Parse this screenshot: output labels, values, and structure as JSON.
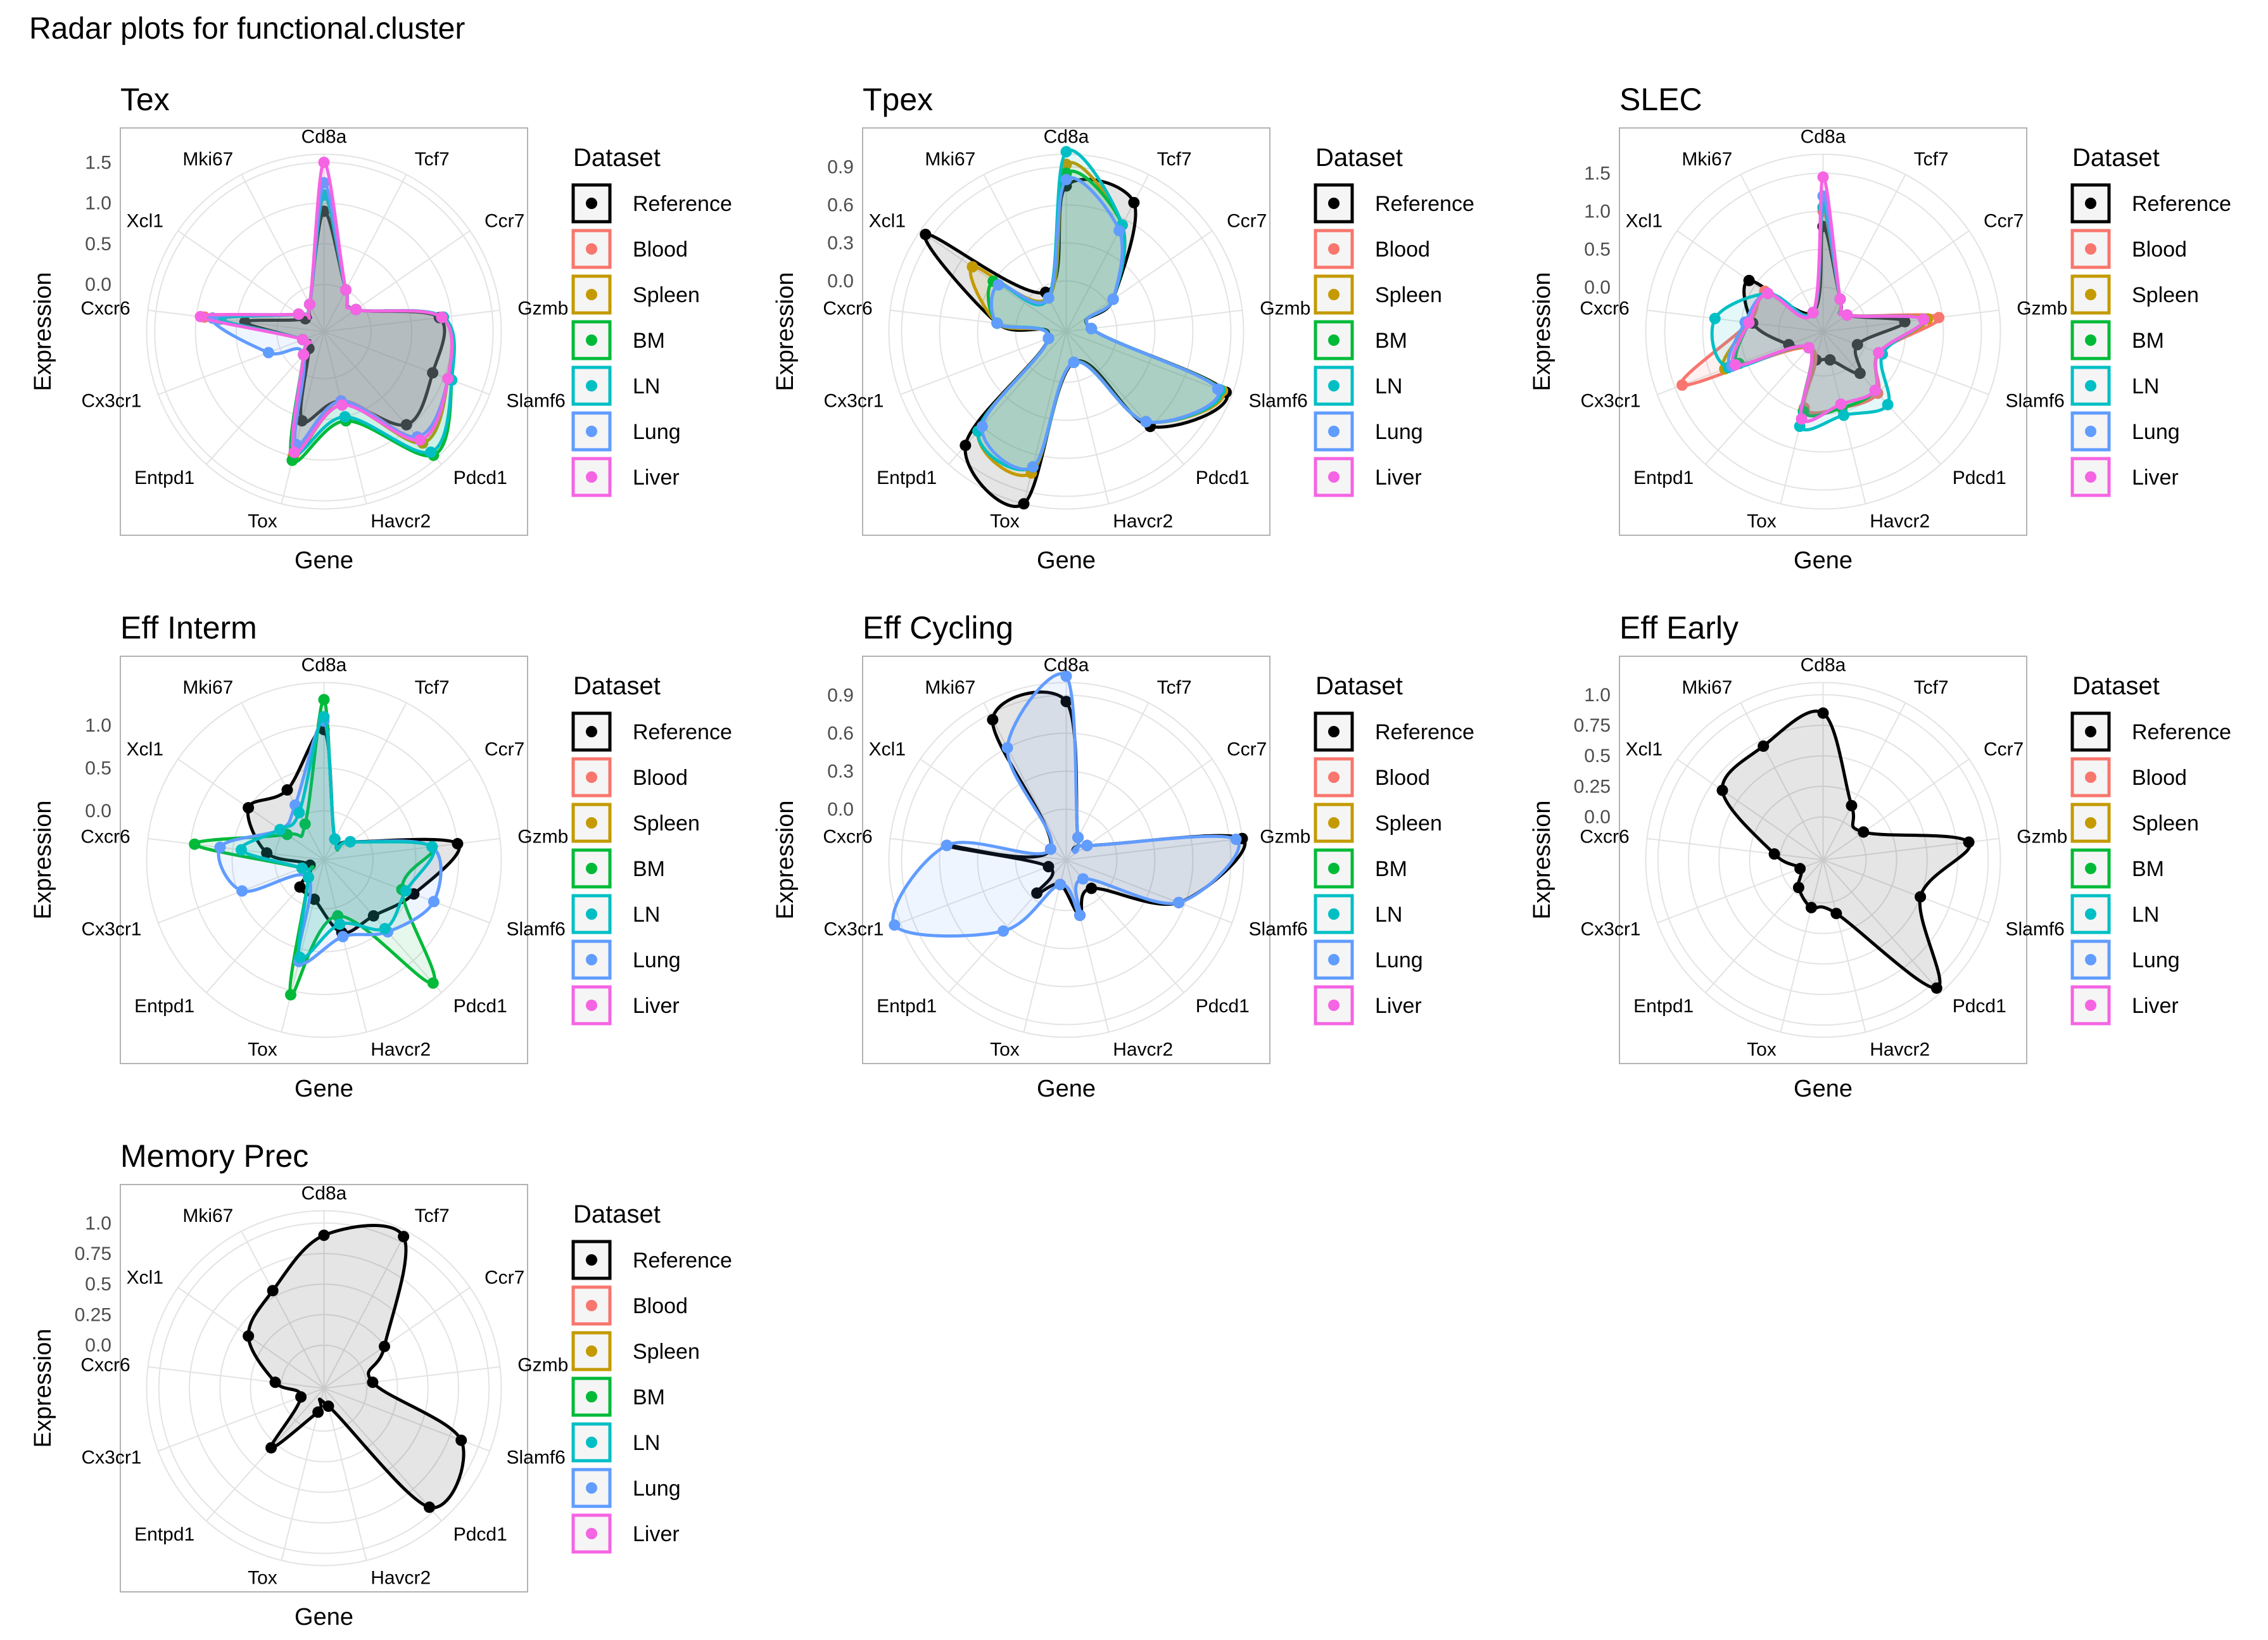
{
  "page_title": "Radar plots for functional.cluster",
  "colors": {
    "Reference": "#000000",
    "Blood": "#F8766D",
    "Spleen": "#C49A00",
    "BM": "#00BA38",
    "LN": "#00BFC4",
    "Lung": "#619CFF",
    "Liver": "#F564E3"
  },
  "chart_data": [
    {
      "type": "radar",
      "title": "Tex",
      "xlabel": "Gene",
      "ylabel": "Expression",
      "legend_title": "Dataset",
      "legend_items": [
        "Reference",
        "Blood",
        "Spleen",
        "BM",
        "LN",
        "Lung",
        "Liver"
      ],
      "categories": [
        "Cd8a",
        "Tcf7",
        "Ccr7",
        "Gzmb",
        "Slamf6",
        "Pdcd1",
        "Havcr2",
        "Tox",
        "Entpd1",
        "Cx3cr1",
        "Cxcr6",
        "Xcl1",
        "Mki67"
      ],
      "ylim": [
        -0.5,
        1.6
      ],
      "yticks": [
        0.0,
        0.5,
        1.0,
        1.5
      ],
      "series": [
        {
          "name": "Reference",
          "values": [
            0.9,
            0.0,
            -0.1,
            0.85,
            0.85,
            0.95,
            0.3,
            0.55,
            -0.3,
            -0.3,
            0.4,
            -0.3,
            -0.2
          ]
        },
        {
          "name": "Blood",
          "values": [
            1.1,
            0.0,
            -0.1,
            0.88,
            1.05,
            1.15,
            0.3,
            0.95,
            -0.2,
            -0.3,
            0.9,
            -0.2,
            -0.2
          ]
        },
        {
          "name": "Spleen",
          "values": [
            1.1,
            0.0,
            -0.1,
            0.88,
            1.05,
            1.25,
            0.35,
            1.0,
            -0.2,
            -0.3,
            0.8,
            -0.2,
            -0.2
          ]
        },
        {
          "name": "BM",
          "values": [
            1.1,
            0.0,
            -0.1,
            0.88,
            1.1,
            1.45,
            0.55,
            1.05,
            -0.2,
            -0.3,
            0.7,
            -0.2,
            -0.2
          ]
        },
        {
          "name": "LN",
          "values": [
            1.1,
            0.0,
            -0.1,
            0.9,
            1.1,
            1.4,
            0.5,
            0.95,
            -0.2,
            -0.3,
            0.7,
            -0.2,
            -0.2
          ]
        },
        {
          "name": "Lung",
          "values": [
            1.25,
            0.0,
            -0.1,
            0.88,
            1.05,
            1.15,
            0.3,
            0.85,
            -0.2,
            0.15,
            0.8,
            -0.2,
            -0.2
          ]
        },
        {
          "name": "Liver",
          "values": [
            1.5,
            0.0,
            -0.1,
            0.88,
            1.05,
            1.2,
            0.35,
            0.95,
            -0.2,
            -0.3,
            0.95,
            -0.2,
            -0.2
          ]
        }
      ]
    },
    {
      "type": "radar",
      "title": "Tpex",
      "xlabel": "Gene",
      "ylabel": "Expression",
      "legend_title": "Dataset",
      "legend_items": [
        "Reference",
        "Blood",
        "Spleen",
        "BM",
        "LN",
        "Lung",
        "Liver"
      ],
      "categories": [
        "Cd8a",
        "Tcf7",
        "Ccr7",
        "Gzmb",
        "Slamf6",
        "Pdcd1",
        "Havcr2",
        "Tox",
        "Entpd1",
        "Cx3cr1",
        "Cxcr6",
        "Xcl1",
        "Mki67"
      ],
      "ylim": [
        -0.35,
        1.0
      ],
      "yticks": [
        0.0,
        0.3,
        0.6,
        0.9
      ],
      "series": [
        {
          "name": "Reference",
          "values": [
            0.75,
            0.75,
            0.05,
            -0.2,
            0.95,
            0.6,
            -0.15,
            1.0,
            0.8,
            -0.25,
            0.15,
            0.95,
            -0.05
          ]
        },
        {
          "name": "Spleen",
          "values": [
            0.92,
            0.55,
            0.05,
            -0.2,
            0.92,
            0.55,
            -0.15,
            0.75,
            0.65,
            -0.25,
            0.15,
            0.5,
            -0.1
          ]
        },
        {
          "name": "BM",
          "values": [
            0.85,
            0.55,
            0.05,
            -0.2,
            0.9,
            0.55,
            -0.15,
            0.7,
            0.65,
            -0.25,
            0.15,
            0.3,
            -0.1
          ]
        },
        {
          "name": "LN",
          "values": [
            1.02,
            0.55,
            0.05,
            -0.2,
            0.9,
            0.55,
            -0.15,
            0.7,
            0.65,
            -0.25,
            0.15,
            0.25,
            -0.1
          ]
        },
        {
          "name": "Lung",
          "values": [
            0.8,
            0.5,
            0.05,
            -0.2,
            0.88,
            0.55,
            -0.15,
            0.7,
            0.6,
            -0.25,
            0.15,
            0.25,
            -0.1
          ]
        }
      ]
    },
    {
      "type": "radar",
      "title": "SLEC",
      "xlabel": "Gene",
      "ylabel": "Expression",
      "legend_title": "Dataset",
      "legend_items": [
        "Reference",
        "Blood",
        "Spleen",
        "BM",
        "LN",
        "Lung",
        "Liver"
      ],
      "categories": [
        "Cd8a",
        "Tcf7",
        "Ccr7",
        "Gzmb",
        "Slamf6",
        "Pdcd1",
        "Havcr2",
        "Tox",
        "Entpd1",
        "Cx3cr1",
        "Cxcr6",
        "Xcl1",
        "Mki67"
      ],
      "ylim": [
        -0.5,
        1.75
      ],
      "yticks": [
        0.0,
        0.5,
        1.0,
        1.5
      ],
      "series": [
        {
          "name": "Reference",
          "values": [
            0.8,
            -0.1,
            -0.2,
            0.5,
            -0.1,
            0.15,
            -0.2,
            -0.2,
            -0.3,
            -0.1,
            0.35,
            0.6,
            -0.3
          ]
        },
        {
          "name": "Blood",
          "values": [
            1.0,
            -0.1,
            -0.2,
            0.95,
            0.2,
            0.5,
            0.45,
            0.45,
            -0.3,
            1.4,
            0.4,
            0.35,
            -0.3
          ]
        },
        {
          "name": "Spleen",
          "values": [
            1.05,
            -0.1,
            -0.2,
            0.8,
            0.2,
            0.45,
            0.45,
            0.5,
            -0.3,
            0.8,
            0.4,
            0.3,
            -0.3
          ]
        },
        {
          "name": "BM",
          "values": [
            1.05,
            -0.1,
            -0.2,
            0.75,
            0.2,
            0.45,
            0.45,
            0.5,
            -0.3,
            0.6,
            0.4,
            0.3,
            -0.3
          ]
        },
        {
          "name": "LN",
          "values": [
            1.05,
            -0.1,
            -0.2,
            0.75,
            0.25,
            0.7,
            0.55,
            0.7,
            -0.3,
            0.75,
            0.85,
            0.3,
            -0.3
          ]
        },
        {
          "name": "Lung",
          "values": [
            1.2,
            -0.1,
            -0.2,
            0.75,
            0.2,
            0.45,
            0.4,
            0.6,
            -0.3,
            0.7,
            0.45,
            0.3,
            -0.3
          ]
        },
        {
          "name": "Liver",
          "values": [
            1.45,
            -0.1,
            -0.2,
            0.75,
            0.2,
            0.45,
            0.4,
            0.6,
            -0.3,
            0.65,
            0.4,
            0.3,
            -0.3
          ]
        }
      ]
    },
    {
      "type": "radar",
      "title": "Eff Interm",
      "xlabel": "Gene",
      "ylabel": "Expression",
      "legend_title": "Dataset",
      "legend_items": [
        "Reference",
        "Blood",
        "Spleen",
        "BM",
        "LN",
        "Lung",
        "Liver"
      ],
      "categories": [
        "Cd8a",
        "Tcf7",
        "Ccr7",
        "Gzmb",
        "Slamf6",
        "Pdcd1",
        "Havcr2",
        "Tox",
        "Entpd1",
        "Cx3cr1",
        "Cxcr6",
        "Xcl1",
        "Mki67"
      ],
      "ylim": [
        -0.5,
        1.5
      ],
      "yticks": [
        0.0,
        0.5,
        1.0
      ],
      "series": [
        {
          "name": "Reference",
          "values": [
            0.95,
            -0.3,
            -0.2,
            1.0,
            0.55,
            0.3,
            0.3,
            -0.1,
            -0.15,
            -0.4,
            0.1,
            0.5,
            0.35
          ]
        },
        {
          "name": "BM",
          "values": [
            1.3,
            -0.3,
            -0.2,
            0.7,
            0.4,
            1.35,
            0.1,
            1.05,
            -0.3,
            -0.3,
            0.95,
            -0.05,
            -0.1
          ]
        },
        {
          "name": "Lung",
          "values": [
            1.05,
            -0.3,
            -0.2,
            0.7,
            0.8,
            0.55,
            0.35,
            0.65,
            -0.3,
            0.45,
            0.65,
            0.05,
            0.15
          ]
        },
        {
          "name": "LN",
          "values": [
            1.1,
            -0.3,
            -0.2,
            0.7,
            0.45,
            0.5,
            0.2,
            0.6,
            -0.3,
            -0.3,
            0.4,
            0.05,
            0.05
          ]
        }
      ]
    },
    {
      "type": "radar",
      "title": "Eff Cycling",
      "xlabel": "Gene",
      "ylabel": "Expression",
      "legend_title": "Dataset",
      "legend_items": [
        "Reference",
        "Blood",
        "Spleen",
        "BM",
        "LN",
        "Lung",
        "Liver"
      ],
      "categories": [
        "Cd8a",
        "Tcf7",
        "Ccr7",
        "Gzmb",
        "Slamf6",
        "Pdcd1",
        "Havcr2",
        "Tox",
        "Entpd1",
        "Cx3cr1",
        "Cxcr6",
        "Xcl1",
        "Mki67"
      ],
      "ylim": [
        -0.35,
        1.0
      ],
      "yticks": [
        0.0,
        0.3,
        0.6,
        0.9
      ],
      "series": [
        {
          "name": "Reference",
          "values": [
            0.85,
            -0.2,
            -0.2,
            1.0,
            0.55,
            -0.1,
            0.05,
            -0.2,
            -0.05,
            -0.25,
            0.55,
            -0.25,
            0.85
          ]
        },
        {
          "name": "Lung",
          "values": [
            1.05,
            -0.2,
            -0.2,
            0.95,
            0.55,
            -0.2,
            0.05,
            -0.2,
            0.35,
            1.05,
            0.55,
            -0.25,
            0.6
          ]
        }
      ]
    },
    {
      "type": "radar",
      "title": "Eff Early",
      "xlabel": "Gene",
      "ylabel": "Expression",
      "legend_title": "Dataset",
      "legend_items": [
        "Reference",
        "Blood",
        "Spleen",
        "BM",
        "LN",
        "Lung",
        "Liver"
      ],
      "categories": [
        "Cd8a",
        "Tcf7",
        "Ccr7",
        "Gzmb",
        "Slamf6",
        "Pdcd1",
        "Havcr2",
        "Tox",
        "Entpd1",
        "Cx3cr1",
        "Cxcr6",
        "Xcl1",
        "Mki67"
      ],
      "ylim": [
        -0.3,
        1.1
      ],
      "yticks": [
        0.0,
        0.25,
        0.5,
        0.75,
        1.0
      ],
      "series": [
        {
          "name": "Reference",
          "values": [
            0.85,
            0.15,
            0.05,
            0.85,
            0.5,
            1.05,
            0.1,
            0.05,
            -0.05,
            -0.15,
            0.05,
            0.65,
            0.7
          ]
        }
      ]
    },
    {
      "type": "radar",
      "title": "Memory Prec",
      "xlabel": "Gene",
      "ylabel": "Expression",
      "legend_title": "Dataset",
      "legend_items": [
        "Reference",
        "Blood",
        "Spleen",
        "BM",
        "LN",
        "Lung",
        "Liver"
      ],
      "categories": [
        "Cd8a",
        "Tcf7",
        "Ccr7",
        "Gzmb",
        "Slamf6",
        "Pdcd1",
        "Havcr2",
        "Tox",
        "Entpd1",
        "Cx3cr1",
        "Cxcr6",
        "Xcl1",
        "Mki67"
      ],
      "ylim": [
        -0.3,
        1.1
      ],
      "yticks": [
        0.0,
        0.25,
        0.5,
        0.75,
        1.0
      ],
      "series": [
        {
          "name": "Reference",
          "values": [
            0.9,
            1.05,
            0.25,
            0.05,
            0.85,
            0.95,
            -0.2,
            -0.15,
            0.3,
            -0.15,
            0.05,
            0.4,
            0.55
          ]
        }
      ]
    }
  ]
}
